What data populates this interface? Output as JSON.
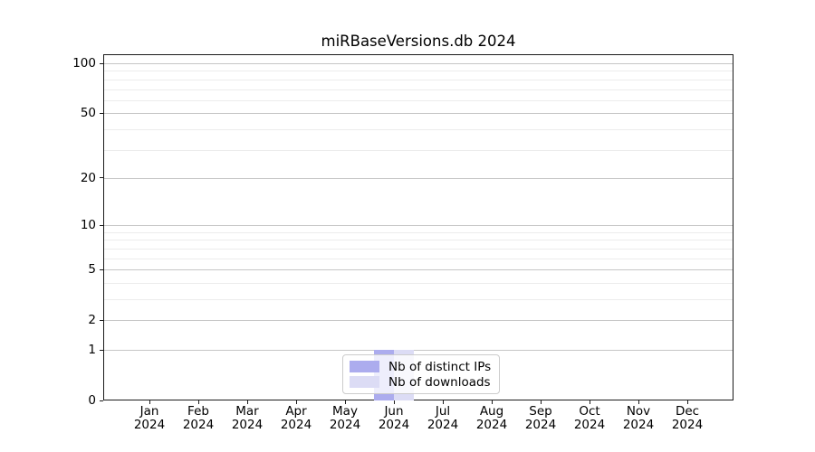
{
  "title": "miRBaseVersions.db 2024",
  "legend": {
    "items": [
      {
        "label": "Nb of distinct IPs",
        "color": "#acacee"
      },
      {
        "label": "Nb of downloads",
        "color": "#dcdcf5"
      }
    ]
  },
  "chart_data": {
    "type": "bar",
    "title": "miRBaseVersions.db 2024",
    "categories": [
      "Jan 2024",
      "Feb 2024",
      "Mar 2024",
      "Apr 2024",
      "May 2024",
      "Jun 2024",
      "Jul 2024",
      "Aug 2024",
      "Sep 2024",
      "Oct 2024",
      "Nov 2024",
      "Dec 2024"
    ],
    "series": [
      {
        "name": "Nb of distinct IPs",
        "color": "#acacee",
        "values": [
          0,
          0,
          0,
          0,
          0,
          1,
          0,
          0,
          0,
          0,
          0,
          0
        ]
      },
      {
        "name": "Nb of downloads",
        "color": "#dcdcf5",
        "values": [
          0,
          0,
          0,
          0,
          0,
          1,
          0,
          0,
          0,
          0,
          0,
          0
        ]
      }
    ],
    "xlabel": "",
    "ylabel": "",
    "yscale": "log1p",
    "ylim": [
      0,
      113
    ],
    "y_major_ticks": [
      100,
      50,
      20,
      10,
      5,
      2,
      1,
      0
    ],
    "y_minor_gridlines": [
      90,
      80,
      70,
      60,
      40,
      30,
      9,
      8,
      7,
      6,
      4,
      3
    ],
    "grid": true,
    "legend_position": "lower center"
  }
}
